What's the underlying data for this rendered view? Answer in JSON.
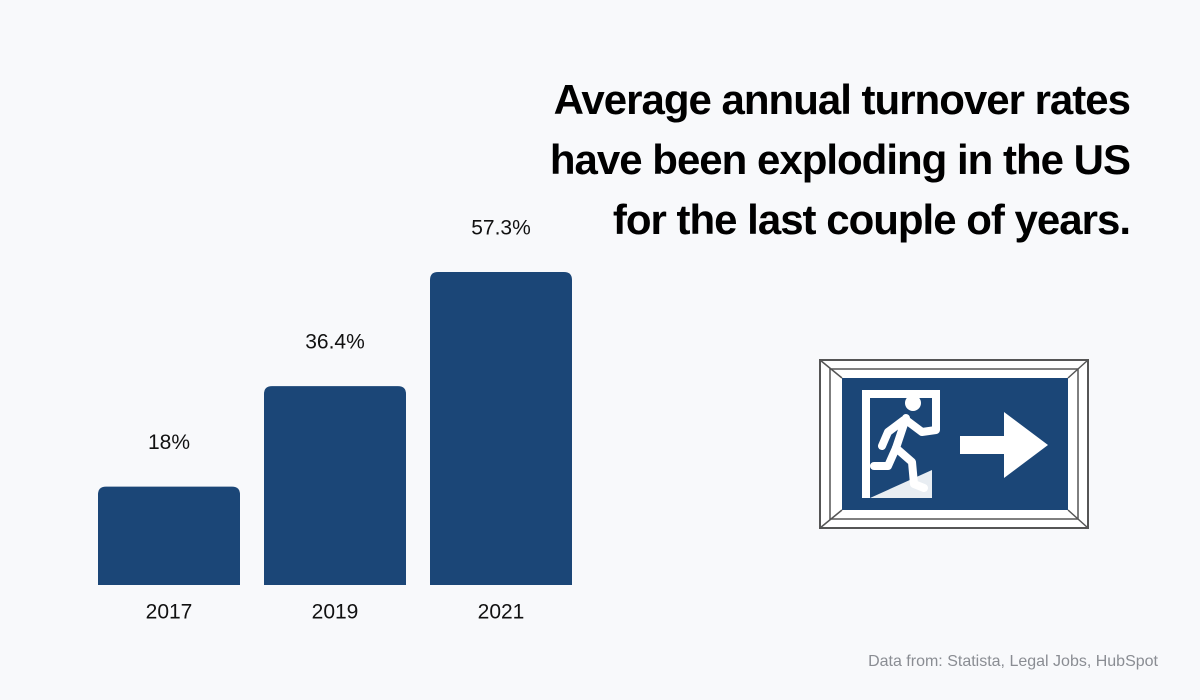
{
  "chart_data": {
    "type": "bar",
    "title": "Average annual turnover rates have been exploding in the US for the last couple of years.",
    "categories": [
      "2017",
      "2019",
      "2021"
    ],
    "values": [
      18,
      36.4,
      57.3
    ],
    "value_labels": [
      "18%",
      "36.4%",
      "57.3%"
    ],
    "color": "#1b4677",
    "source": "Data from: Statista, Legal Jobs, HubSpot"
  }
}
